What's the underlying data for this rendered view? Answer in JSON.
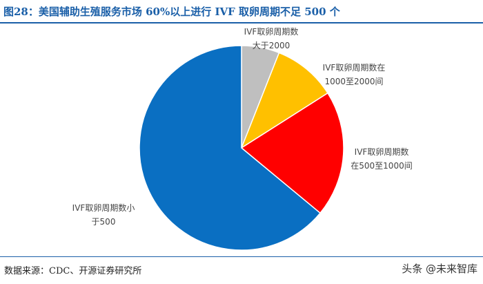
{
  "header": {
    "title": "图28：美国辅助生殖服务市场 60%以上进行 IVF 取卵周期不足 500 个"
  },
  "footer": {
    "source": "数据来源：CDC、开源证券研究所",
    "watermark": "头条 @未来智库"
  },
  "colors": {
    "accent": "#1a5fa8",
    "slice_lt500": "#0a6fc2",
    "slice_500_1000": "#ff0000",
    "slice_1000_2000": "#ffc000",
    "slice_gt2000": "#bfbfbf"
  },
  "chart_data": {
    "type": "pie",
    "title": "",
    "start_angle_deg": 0,
    "direction": "clockwise",
    "slices": [
      {
        "label_lines": [
          "IVF取卵周期数",
          "大于2000"
        ],
        "value": 6,
        "color": "#bfbfbf"
      },
      {
        "label_lines": [
          "IVF取卵周期数在",
          "1000至2000间"
        ],
        "value": 10,
        "color": "#ffc000"
      },
      {
        "label_lines": [
          "IVF取卵周期数",
          "在500至1000间"
        ],
        "value": 20,
        "color": "#ff0000"
      },
      {
        "label_lines": [
          "IVF取卵周期数小",
          "于500"
        ],
        "value": 64,
        "color": "#0a6fc2"
      }
    ]
  }
}
